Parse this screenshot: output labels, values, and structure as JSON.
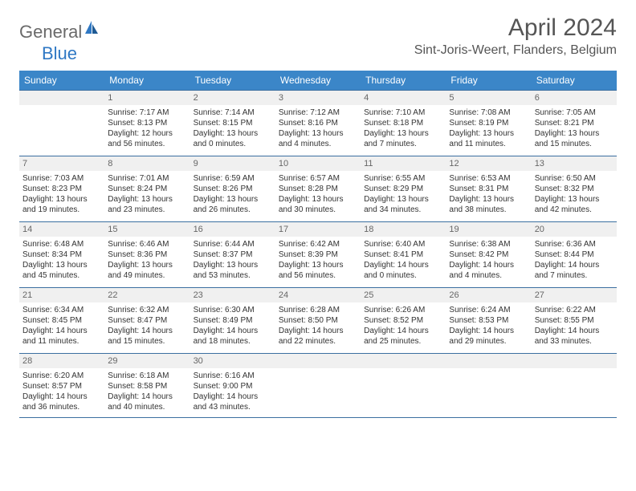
{
  "logo": {
    "text1": "General",
    "text2": "Blue"
  },
  "title": "April 2024",
  "location": "Sint-Joris-Weert, Flanders, Belgium",
  "day_headers": [
    "Sunday",
    "Monday",
    "Tuesday",
    "Wednesday",
    "Thursday",
    "Friday",
    "Saturday"
  ],
  "colors": {
    "header_bg": "#3b86c8",
    "header_text": "#ffffff",
    "daynum_bg": "#f0f0f0",
    "border": "#3b6fa0",
    "brand_blue": "#2f78c4",
    "text_gray": "#555555"
  },
  "weeks": [
    [
      null,
      {
        "n": "1",
        "sr": "Sunrise: 7:17 AM",
        "ss": "Sunset: 8:13 PM",
        "d1": "Daylight: 12 hours",
        "d2": "and 56 minutes."
      },
      {
        "n": "2",
        "sr": "Sunrise: 7:14 AM",
        "ss": "Sunset: 8:15 PM",
        "d1": "Daylight: 13 hours",
        "d2": "and 0 minutes."
      },
      {
        "n": "3",
        "sr": "Sunrise: 7:12 AM",
        "ss": "Sunset: 8:16 PM",
        "d1": "Daylight: 13 hours",
        "d2": "and 4 minutes."
      },
      {
        "n": "4",
        "sr": "Sunrise: 7:10 AM",
        "ss": "Sunset: 8:18 PM",
        "d1": "Daylight: 13 hours",
        "d2": "and 7 minutes."
      },
      {
        "n": "5",
        "sr": "Sunrise: 7:08 AM",
        "ss": "Sunset: 8:19 PM",
        "d1": "Daylight: 13 hours",
        "d2": "and 11 minutes."
      },
      {
        "n": "6",
        "sr": "Sunrise: 7:05 AM",
        "ss": "Sunset: 8:21 PM",
        "d1": "Daylight: 13 hours",
        "d2": "and 15 minutes."
      }
    ],
    [
      {
        "n": "7",
        "sr": "Sunrise: 7:03 AM",
        "ss": "Sunset: 8:23 PM",
        "d1": "Daylight: 13 hours",
        "d2": "and 19 minutes."
      },
      {
        "n": "8",
        "sr": "Sunrise: 7:01 AM",
        "ss": "Sunset: 8:24 PM",
        "d1": "Daylight: 13 hours",
        "d2": "and 23 minutes."
      },
      {
        "n": "9",
        "sr": "Sunrise: 6:59 AM",
        "ss": "Sunset: 8:26 PM",
        "d1": "Daylight: 13 hours",
        "d2": "and 26 minutes."
      },
      {
        "n": "10",
        "sr": "Sunrise: 6:57 AM",
        "ss": "Sunset: 8:28 PM",
        "d1": "Daylight: 13 hours",
        "d2": "and 30 minutes."
      },
      {
        "n": "11",
        "sr": "Sunrise: 6:55 AM",
        "ss": "Sunset: 8:29 PM",
        "d1": "Daylight: 13 hours",
        "d2": "and 34 minutes."
      },
      {
        "n": "12",
        "sr": "Sunrise: 6:53 AM",
        "ss": "Sunset: 8:31 PM",
        "d1": "Daylight: 13 hours",
        "d2": "and 38 minutes."
      },
      {
        "n": "13",
        "sr": "Sunrise: 6:50 AM",
        "ss": "Sunset: 8:32 PM",
        "d1": "Daylight: 13 hours",
        "d2": "and 42 minutes."
      }
    ],
    [
      {
        "n": "14",
        "sr": "Sunrise: 6:48 AM",
        "ss": "Sunset: 8:34 PM",
        "d1": "Daylight: 13 hours",
        "d2": "and 45 minutes."
      },
      {
        "n": "15",
        "sr": "Sunrise: 6:46 AM",
        "ss": "Sunset: 8:36 PM",
        "d1": "Daylight: 13 hours",
        "d2": "and 49 minutes."
      },
      {
        "n": "16",
        "sr": "Sunrise: 6:44 AM",
        "ss": "Sunset: 8:37 PM",
        "d1": "Daylight: 13 hours",
        "d2": "and 53 minutes."
      },
      {
        "n": "17",
        "sr": "Sunrise: 6:42 AM",
        "ss": "Sunset: 8:39 PM",
        "d1": "Daylight: 13 hours",
        "d2": "and 56 minutes."
      },
      {
        "n": "18",
        "sr": "Sunrise: 6:40 AM",
        "ss": "Sunset: 8:41 PM",
        "d1": "Daylight: 14 hours",
        "d2": "and 0 minutes."
      },
      {
        "n": "19",
        "sr": "Sunrise: 6:38 AM",
        "ss": "Sunset: 8:42 PM",
        "d1": "Daylight: 14 hours",
        "d2": "and 4 minutes."
      },
      {
        "n": "20",
        "sr": "Sunrise: 6:36 AM",
        "ss": "Sunset: 8:44 PM",
        "d1": "Daylight: 14 hours",
        "d2": "and 7 minutes."
      }
    ],
    [
      {
        "n": "21",
        "sr": "Sunrise: 6:34 AM",
        "ss": "Sunset: 8:45 PM",
        "d1": "Daylight: 14 hours",
        "d2": "and 11 minutes."
      },
      {
        "n": "22",
        "sr": "Sunrise: 6:32 AM",
        "ss": "Sunset: 8:47 PM",
        "d1": "Daylight: 14 hours",
        "d2": "and 15 minutes."
      },
      {
        "n": "23",
        "sr": "Sunrise: 6:30 AM",
        "ss": "Sunset: 8:49 PM",
        "d1": "Daylight: 14 hours",
        "d2": "and 18 minutes."
      },
      {
        "n": "24",
        "sr": "Sunrise: 6:28 AM",
        "ss": "Sunset: 8:50 PM",
        "d1": "Daylight: 14 hours",
        "d2": "and 22 minutes."
      },
      {
        "n": "25",
        "sr": "Sunrise: 6:26 AM",
        "ss": "Sunset: 8:52 PM",
        "d1": "Daylight: 14 hours",
        "d2": "and 25 minutes."
      },
      {
        "n": "26",
        "sr": "Sunrise: 6:24 AM",
        "ss": "Sunset: 8:53 PM",
        "d1": "Daylight: 14 hours",
        "d2": "and 29 minutes."
      },
      {
        "n": "27",
        "sr": "Sunrise: 6:22 AM",
        "ss": "Sunset: 8:55 PM",
        "d1": "Daylight: 14 hours",
        "d2": "and 33 minutes."
      }
    ],
    [
      {
        "n": "28",
        "sr": "Sunrise: 6:20 AM",
        "ss": "Sunset: 8:57 PM",
        "d1": "Daylight: 14 hours",
        "d2": "and 36 minutes."
      },
      {
        "n": "29",
        "sr": "Sunrise: 6:18 AM",
        "ss": "Sunset: 8:58 PM",
        "d1": "Daylight: 14 hours",
        "d2": "and 40 minutes."
      },
      {
        "n": "30",
        "sr": "Sunrise: 6:16 AM",
        "ss": "Sunset: 9:00 PM",
        "d1": "Daylight: 14 hours",
        "d2": "and 43 minutes."
      },
      null,
      null,
      null,
      null
    ]
  ]
}
